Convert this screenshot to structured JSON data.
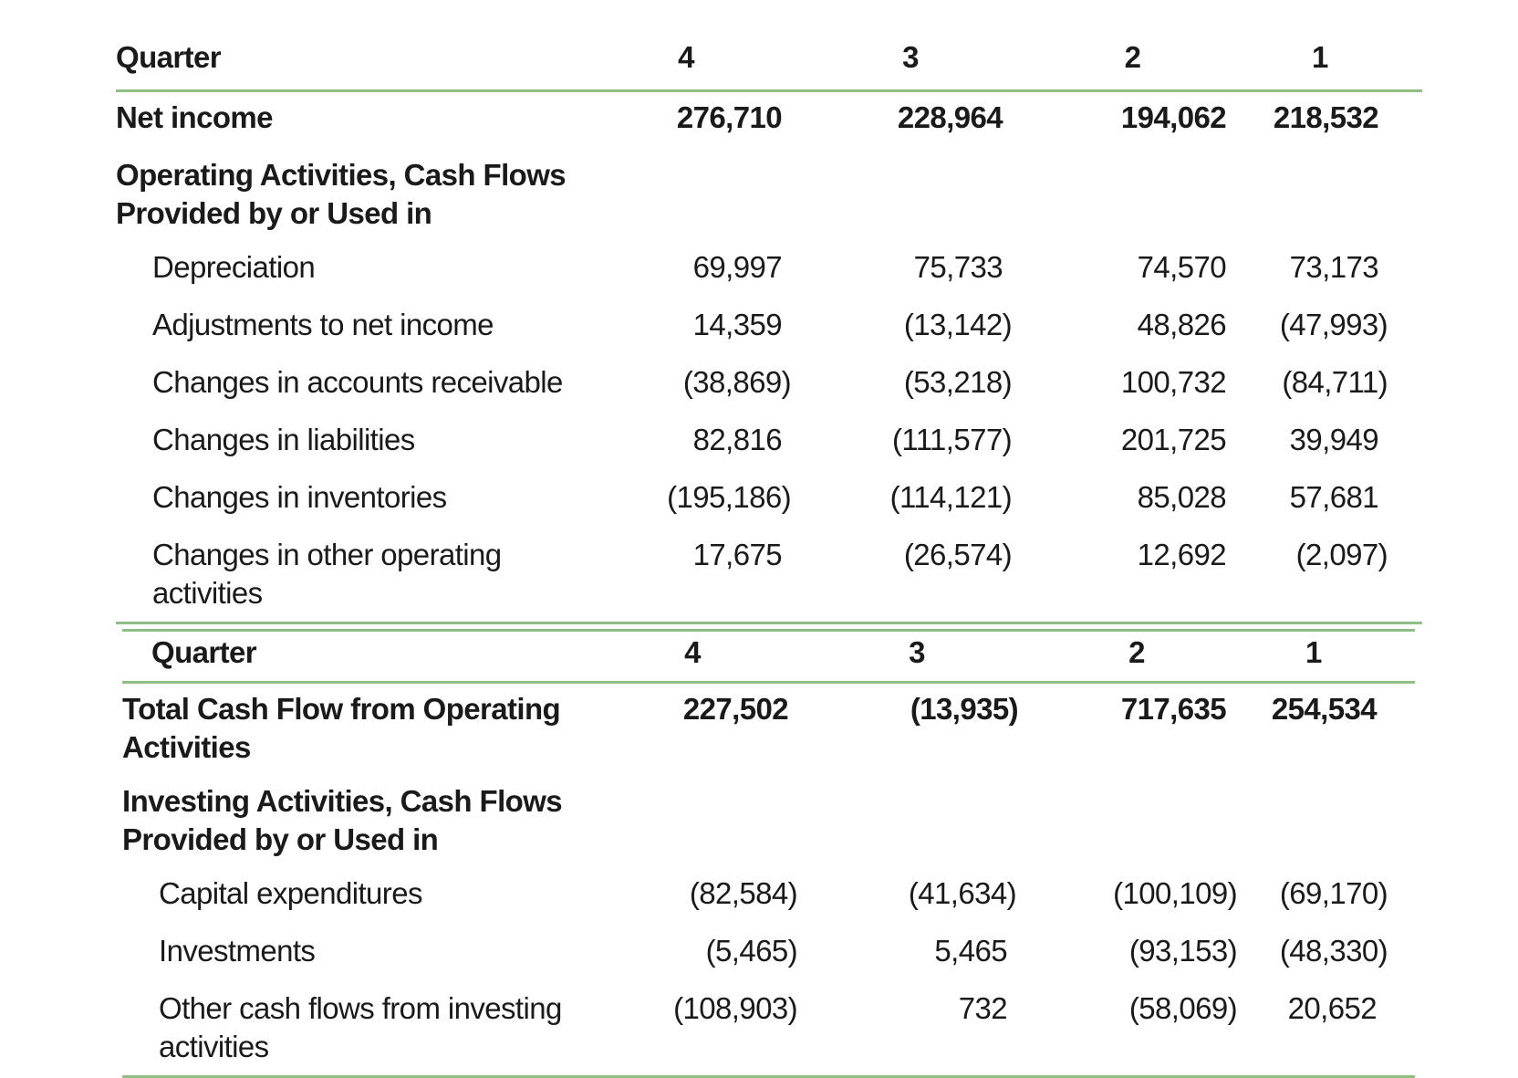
{
  "accent_color": "#8fbf83",
  "table1": {
    "header": {
      "label": "Quarter",
      "quarters": [
        "4",
        "3",
        "2",
        "1"
      ]
    },
    "rows": [
      {
        "label": "Net income",
        "values": [
          "276,710",
          "228,964",
          "194,062",
          "218,532"
        ],
        "bold": true
      },
      {
        "label": "Operating Activities, Cash Flows Provided by or Used in",
        "values": [
          "",
          "",
          "",
          ""
        ],
        "bold": true
      },
      {
        "label": "Depreciation",
        "values": [
          "69,997",
          "75,733",
          "74,570",
          "73,173"
        ]
      },
      {
        "label": "Adjustments to net income",
        "values": [
          "14,359",
          "(13,142)",
          "48,826",
          "(47,993)"
        ]
      },
      {
        "label": "Changes in accounts receivable",
        "values": [
          "(38,869)",
          "(53,218)",
          "100,732",
          "(84,711)"
        ]
      },
      {
        "label": "Changes in liabilities",
        "values": [
          "82,816",
          "(111,577)",
          "201,725",
          "39,949"
        ]
      },
      {
        "label": "Changes in inventories",
        "values": [
          "(195,186)",
          "(114,121)",
          "85,028",
          "57,681"
        ]
      },
      {
        "label": "Changes in other operating activities",
        "values": [
          "17,675",
          "(26,574)",
          "12,692",
          "(2,097)"
        ]
      }
    ]
  },
  "table2": {
    "header": {
      "label": "Quarter",
      "quarters": [
        "4",
        "3",
        "2",
        "1"
      ]
    },
    "rows": [
      {
        "label": "Total Cash Flow from Operating Activities",
        "values": [
          "227,502",
          "(13,935)",
          "717,635",
          "254,534"
        ],
        "bold": true
      },
      {
        "label": "Investing Activities, Cash Flows Provided by or Used in",
        "values": [
          "",
          "",
          "",
          ""
        ],
        "bold": true
      },
      {
        "label": "Capital expenditures",
        "values": [
          "(82,584)",
          "(41,634)",
          "(100,109)",
          "(69,170)"
        ]
      },
      {
        "label": "Investments",
        "values": [
          "(5,465)",
          "5,465",
          "(93,153)",
          "(48,330)"
        ]
      },
      {
        "label": "Other cash flows from investing activities",
        "values": [
          "(108,903)",
          "732",
          "(58,069)",
          "20,652"
        ]
      }
    ]
  }
}
